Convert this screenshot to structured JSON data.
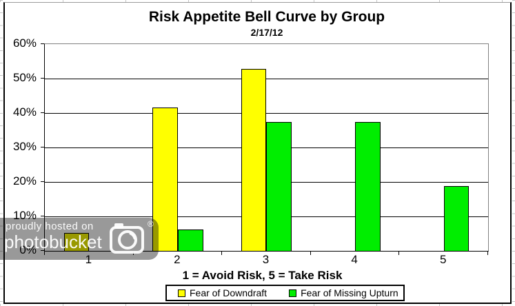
{
  "chart_data": {
    "type": "bar",
    "title": "Risk Appetite Bell Curve by Group",
    "subtitle": "2/17/12",
    "categories": [
      "1",
      "2",
      "3",
      "4",
      "5"
    ],
    "series": [
      {
        "name": "Fear of Downdraft",
        "color": "#FFFF00",
        "values": [
          5.2,
          41.7,
          52.8,
          0,
          0
        ]
      },
      {
        "name": "Fear of Missing Upturn",
        "color": "#00EE00",
        "values": [
          0,
          6.3,
          37.5,
          37.5,
          18.9
        ]
      }
    ],
    "xlabel": "1 = Avoid Risk, 5 = Take Risk",
    "ylabel": "",
    "ylim": [
      0,
      60
    ],
    "ytick_step": 10,
    "yticks": [
      "0%",
      "10%",
      "20%",
      "30%",
      "40%",
      "50%",
      "60%"
    ],
    "grid": true,
    "legend_position": "bottom"
  },
  "watermark": {
    "line1": "proudly hosted on",
    "line2": "photobucket",
    "registered": "®",
    "camera_icon": "camera-icon"
  }
}
